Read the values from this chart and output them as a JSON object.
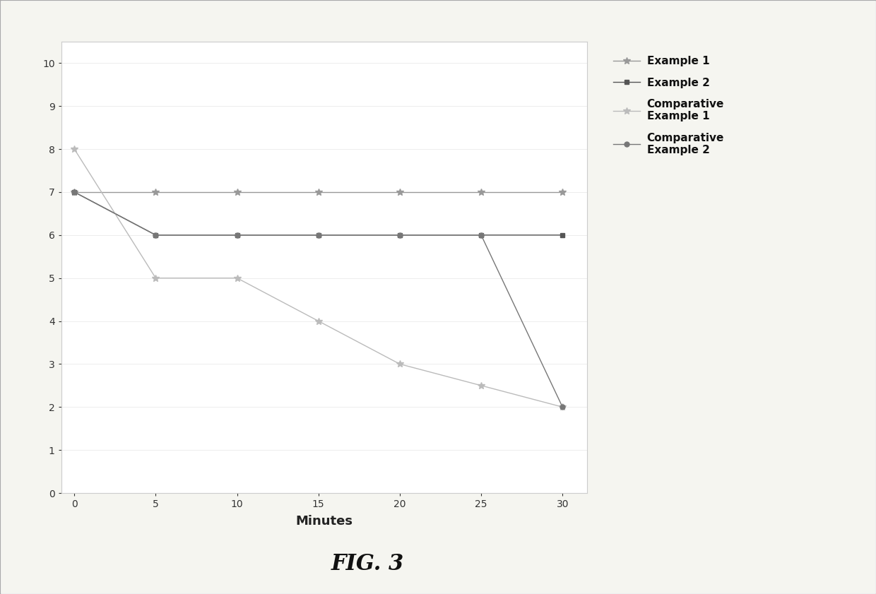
{
  "x": [
    0,
    5,
    10,
    15,
    20,
    25,
    30
  ],
  "series": [
    {
      "label": "Example 1",
      "y": [
        7,
        7,
        7,
        7,
        7,
        7,
        7
      ],
      "color": "#999999",
      "marker": "*",
      "linewidth": 1.0,
      "markersize": 7,
      "linestyle": "-"
    },
    {
      "label": "Example 2",
      "y": [
        7,
        6,
        6,
        6,
        6,
        6,
        6
      ],
      "color": "#555555",
      "marker": "s",
      "linewidth": 1.0,
      "markersize": 5,
      "linestyle": "-"
    },
    {
      "label": "Comparative\nExample 1",
      "y": [
        8,
        5,
        5,
        4,
        3,
        2.5,
        2
      ],
      "color": "#bbbbbb",
      "marker": "*",
      "linewidth": 1.0,
      "markersize": 7,
      "linestyle": "-"
    },
    {
      "label": "Comparative\nExample 2",
      "y": [
        7,
        6,
        6,
        6,
        6,
        6,
        2
      ],
      "color": "#777777",
      "marker": "o",
      "linewidth": 1.0,
      "markersize": 5,
      "linestyle": "-"
    }
  ],
  "xlabel": "Minutes",
  "xlim": [
    -0.8,
    31.5
  ],
  "ylim": [
    0,
    10.5
  ],
  "xticks": [
    0,
    5,
    10,
    15,
    20,
    25,
    30
  ],
  "yticks": [
    0,
    1,
    2,
    3,
    4,
    5,
    6,
    7,
    8,
    9,
    10
  ],
  "figcaption": "FIG. 3",
  "bg_color": "#f5f5f0",
  "plot_bg": "#ffffff",
  "border_color": "#cccccc",
  "xlabel_fontsize": 13,
  "tick_fontsize": 10,
  "legend_fontsize": 11,
  "caption_fontsize": 22
}
